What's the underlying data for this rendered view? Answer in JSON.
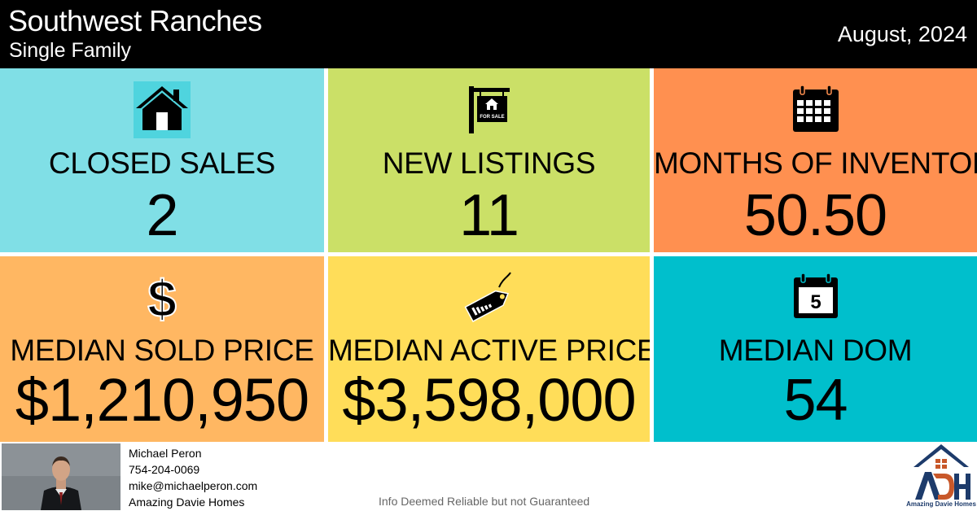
{
  "header": {
    "city": "Southwest Ranches",
    "property_type": "Single Family",
    "date": "August, 2024"
  },
  "tiles": [
    {
      "label": "CLOSED SALES",
      "value": "2",
      "icon": "house-icon",
      "color": "#80dfe6"
    },
    {
      "label": "NEW LISTINGS",
      "value": "11",
      "icon": "for-sale-sign-icon",
      "sign_text": "FOR SALE",
      "color": "#cbe067"
    },
    {
      "label": "MONTHS OF INVENTORY",
      "value": "50.50",
      "icon": "calendar-icon",
      "color": "#ff9050"
    },
    {
      "label": "MEDIAN SOLD PRICE",
      "value": "$1,210,950",
      "icon": "dollar-icon",
      "icon_glyph": "$",
      "color": "#ffb762"
    },
    {
      "label": "MEDIAN ACTIVE PRICE",
      "value": "$3,598,000",
      "icon": "price-tag-icon",
      "color": "#ffdd59"
    },
    {
      "label": "MEDIAN DOM",
      "value": "54",
      "icon": "calendar-day-icon",
      "icon_number": "5",
      "color": "#00bfcc"
    }
  ],
  "agent": {
    "name": "Michael Peron",
    "phone": "754-204-0069",
    "email": "mike@michaelperon.com",
    "company": "Amazing Davie Homes"
  },
  "disclaimer": "Info Deemed Reliable but not Guaranteed",
  "logo": {
    "text": "Amazing Davie Homes",
    "brand_color": "#1d3b6b",
    "accent_color": "#c8582a"
  }
}
